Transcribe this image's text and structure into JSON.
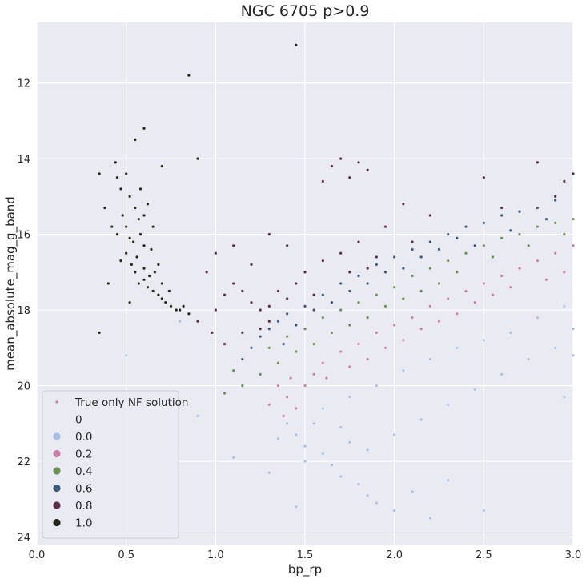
{
  "chart_data": {
    "type": "scatter",
    "title": "NGC 6705 p>0.9",
    "xlabel": "bp_rp",
    "ylabel": "mean_absolute_mag_g_band",
    "xlim": [
      0.0,
      3.0
    ],
    "ylim": [
      24.2,
      10.4
    ],
    "y_inverted": true,
    "x_ticks": [
      0.0,
      0.5,
      1.0,
      1.5,
      2.0,
      2.5,
      3.0
    ],
    "x_tick_labels": [
      "0.0",
      "0.5",
      "1.0",
      "1.5",
      "2.0",
      "2.5",
      "3.0"
    ],
    "y_ticks": [
      12,
      14,
      16,
      18,
      20,
      22,
      24
    ],
    "y_tick_labels": [
      "12",
      "14",
      "16",
      "18",
      "20",
      "22",
      "24"
    ],
    "grid": true,
    "background": "#eaeaf2",
    "hue_name": "0",
    "hue_colors": {
      "0.0": "#a7bfe4",
      "0.2": "#c981a8",
      "0.4": "#6a8f52",
      "0.6": "#38597a",
      "0.8": "#5c2d46",
      "1.0": "#262618"
    },
    "legend": {
      "placement": "lower-left",
      "entries": [
        {
          "label": "True only NF solution",
          "marker": "cross",
          "color": "#c981a8"
        },
        {
          "label": "0",
          "marker": "none",
          "color": ""
        },
        {
          "label": "0.0",
          "marker": "dot",
          "color": "#a7bfe4"
        },
        {
          "label": "0.2",
          "marker": "dot",
          "color": "#c981a8"
        },
        {
          "label": "0.4",
          "marker": "dot",
          "color": "#6a8f52"
        },
        {
          "label": "0.6",
          "marker": "dot",
          "color": "#38597a"
        },
        {
          "label": "0.8",
          "marker": "dot",
          "color": "#5c2d46"
        },
        {
          "label": "1.0",
          "marker": "dot",
          "color": "#262618"
        }
      ]
    },
    "series": [
      {
        "hue": "1.0",
        "points": [
          [
            0.45,
            14.5
          ],
          [
            0.47,
            14.8
          ],
          [
            0.5,
            14.4
          ],
          [
            0.52,
            15.0
          ],
          [
            0.55,
            15.3
          ],
          [
            0.57,
            15.6
          ],
          [
            0.58,
            16.0
          ],
          [
            0.6,
            16.3
          ],
          [
            0.5,
            16.5
          ],
          [
            0.53,
            16.8
          ],
          [
            0.55,
            17.0
          ],
          [
            0.6,
            17.2
          ],
          [
            0.62,
            17.4
          ],
          [
            0.65,
            17.5
          ],
          [
            0.68,
            17.6
          ],
          [
            0.7,
            17.7
          ],
          [
            0.72,
            17.8
          ],
          [
            0.75,
            17.9
          ],
          [
            0.78,
            18.0
          ],
          [
            0.8,
            18.0
          ],
          [
            0.48,
            15.5
          ],
          [
            0.5,
            15.8
          ],
          [
            0.52,
            16.1
          ],
          [
            0.56,
            16.6
          ],
          [
            0.6,
            16.9
          ],
          [
            0.63,
            17.1
          ],
          [
            0.58,
            14.8
          ],
          [
            0.62,
            15.2
          ],
          [
            0.65,
            15.8
          ],
          [
            0.57,
            17.3
          ],
          [
            0.54,
            16.2
          ],
          [
            0.66,
            17.0
          ],
          [
            0.7,
            17.3
          ],
          [
            0.74,
            17.5
          ],
          [
            0.82,
            17.9
          ],
          [
            0.85,
            18.1
          ],
          [
            0.45,
            16.0
          ],
          [
            0.47,
            16.7
          ],
          [
            0.42,
            15.8
          ],
          [
            0.6,
            15.5
          ],
          [
            0.64,
            16.4
          ],
          [
            0.68,
            16.8
          ],
          [
            0.35,
            14.4
          ],
          [
            0.38,
            15.3
          ],
          [
            0.44,
            14.1
          ],
          [
            0.55,
            13.5
          ],
          [
            0.6,
            13.2
          ],
          [
            0.35,
            18.6
          ],
          [
            0.85,
            11.8
          ],
          [
            1.45,
            11.0
          ],
          [
            0.4,
            17.3
          ],
          [
            0.52,
            17.8
          ],
          [
            0.7,
            14.2
          ],
          [
            0.9,
            14.0
          ]
        ]
      },
      {
        "hue": "0.8",
        "points": [
          [
            0.9,
            18.3
          ],
          [
            1.0,
            18.0
          ],
          [
            1.05,
            17.6
          ],
          [
            1.1,
            17.3
          ],
          [
            1.15,
            17.5
          ],
          [
            1.2,
            17.8
          ],
          [
            1.25,
            18.0
          ],
          [
            1.3,
            17.9
          ],
          [
            1.35,
            17.5
          ],
          [
            1.4,
            17.7
          ],
          [
            1.45,
            17.3
          ],
          [
            1.5,
            17.0
          ],
          [
            1.6,
            16.7
          ],
          [
            1.7,
            16.5
          ],
          [
            1.8,
            16.2
          ],
          [
            1.9,
            16.6
          ],
          [
            1.75,
            17.0
          ],
          [
            1.85,
            16.9
          ],
          [
            1.0,
            16.5
          ],
          [
            1.1,
            16.3
          ],
          [
            0.95,
            17.0
          ],
          [
            1.2,
            16.8
          ],
          [
            1.3,
            18.3
          ],
          [
            1.25,
            18.5
          ],
          [
            1.15,
            18.6
          ],
          [
            1.05,
            18.9
          ],
          [
            1.65,
            14.2
          ],
          [
            1.75,
            14.5
          ],
          [
            1.8,
            14.1
          ],
          [
            1.6,
            14.6
          ],
          [
            1.7,
            14.0
          ],
          [
            1.85,
            14.3
          ],
          [
            2.05,
            15.2
          ],
          [
            2.2,
            15.5
          ],
          [
            2.6,
            15.3
          ],
          [
            2.9,
            15.0
          ],
          [
            2.95,
            14.6
          ],
          [
            3.0,
            14.4
          ],
          [
            2.8,
            14.1
          ],
          [
            2.5,
            14.5
          ],
          [
            1.3,
            16.0
          ],
          [
            1.4,
            16.3
          ],
          [
            1.55,
            17.6
          ],
          [
            1.95,
            15.8
          ],
          [
            2.1,
            16.2
          ],
          [
            0.98,
            18.6
          ]
        ]
      },
      {
        "hue": "0.6",
        "points": [
          [
            1.25,
            18.7
          ],
          [
            1.3,
            18.5
          ],
          [
            1.35,
            18.3
          ],
          [
            1.4,
            18.1
          ],
          [
            1.5,
            17.9
          ],
          [
            1.6,
            17.6
          ],
          [
            1.7,
            17.3
          ],
          [
            1.8,
            17.1
          ],
          [
            1.9,
            16.8
          ],
          [
            2.0,
            16.6
          ],
          [
            2.1,
            16.4
          ],
          [
            2.2,
            16.2
          ],
          [
            2.3,
            16.0
          ],
          [
            2.4,
            15.8
          ],
          [
            2.5,
            15.7
          ],
          [
            2.6,
            15.5
          ],
          [
            2.7,
            15.4
          ],
          [
            2.8,
            15.3
          ],
          [
            2.9,
            15.1
          ],
          [
            1.45,
            18.4
          ],
          [
            1.55,
            18.0
          ],
          [
            1.65,
            17.8
          ],
          [
            1.75,
            17.5
          ],
          [
            1.85,
            17.3
          ],
          [
            1.95,
            17.0
          ],
          [
            2.05,
            16.9
          ],
          [
            2.15,
            16.6
          ],
          [
            2.25,
            16.4
          ],
          [
            2.35,
            16.1
          ],
          [
            1.2,
            19.0
          ],
          [
            1.15,
            19.3
          ],
          [
            1.38,
            18.9
          ],
          [
            2.45,
            16.3
          ],
          [
            2.65,
            15.9
          ],
          [
            2.85,
            15.6
          ]
        ]
      },
      {
        "hue": "0.4",
        "points": [
          [
            1.3,
            19.0
          ],
          [
            1.4,
            18.7
          ],
          [
            1.5,
            18.5
          ],
          [
            1.6,
            18.2
          ],
          [
            1.7,
            18.0
          ],
          [
            1.8,
            17.8
          ],
          [
            1.9,
            17.6
          ],
          [
            2.0,
            17.4
          ],
          [
            2.1,
            17.1
          ],
          [
            2.2,
            16.9
          ],
          [
            2.3,
            16.7
          ],
          [
            2.4,
            16.5
          ],
          [
            2.5,
            16.3
          ],
          [
            2.6,
            16.1
          ],
          [
            2.7,
            16.0
          ],
          [
            2.8,
            15.8
          ],
          [
            2.9,
            15.7
          ],
          [
            3.0,
            15.6
          ],
          [
            1.1,
            19.6
          ],
          [
            1.15,
            20.0
          ],
          [
            1.05,
            20.2
          ],
          [
            1.25,
            19.7
          ],
          [
            1.35,
            19.4
          ],
          [
            1.45,
            19.1
          ],
          [
            1.55,
            18.9
          ],
          [
            1.65,
            18.6
          ],
          [
            1.75,
            18.4
          ],
          [
            1.85,
            18.2
          ],
          [
            1.95,
            17.9
          ],
          [
            2.05,
            17.7
          ],
          [
            2.15,
            17.5
          ],
          [
            2.25,
            17.3
          ],
          [
            2.35,
            17.0
          ],
          [
            2.55,
            16.6
          ],
          [
            2.75,
            16.3
          ],
          [
            2.95,
            16.0
          ]
        ]
      },
      {
        "hue": "0.2",
        "points": [
          [
            1.35,
            20.0
          ],
          [
            1.4,
            20.3
          ],
          [
            1.45,
            20.6
          ],
          [
            1.5,
            20.0
          ],
          [
            1.55,
            19.7
          ],
          [
            1.6,
            19.4
          ],
          [
            1.7,
            19.1
          ],
          [
            1.8,
            18.9
          ],
          [
            1.9,
            18.6
          ],
          [
            2.0,
            18.4
          ],
          [
            2.1,
            18.2
          ],
          [
            2.2,
            17.9
          ],
          [
            2.3,
            17.7
          ],
          [
            2.4,
            17.5
          ],
          [
            2.5,
            17.3
          ],
          [
            2.6,
            17.1
          ],
          [
            2.7,
            16.9
          ],
          [
            2.8,
            16.7
          ],
          [
            2.9,
            16.5
          ],
          [
            3.0,
            16.3
          ],
          [
            1.3,
            20.5
          ],
          [
            1.38,
            20.8
          ],
          [
            1.42,
            19.8
          ],
          [
            1.62,
            19.8
          ],
          [
            1.75,
            19.5
          ],
          [
            1.85,
            19.3
          ],
          [
            1.95,
            19.0
          ],
          [
            2.05,
            18.8
          ],
          [
            2.15,
            18.5
          ],
          [
            2.25,
            18.3
          ],
          [
            2.35,
            18.1
          ],
          [
            2.45,
            17.8
          ],
          [
            2.55,
            17.6
          ],
          [
            2.65,
            17.4
          ],
          [
            2.85,
            17.2
          ],
          [
            2.95,
            17.0
          ]
        ]
      },
      {
        "hue": "0.0",
        "points": [
          [
            1.4,
            21.0
          ],
          [
            1.45,
            21.3
          ],
          [
            1.5,
            21.6
          ],
          [
            1.55,
            21.0
          ],
          [
            1.6,
            21.8
          ],
          [
            1.65,
            22.1
          ],
          [
            1.7,
            22.4
          ],
          [
            1.75,
            21.5
          ],
          [
            1.8,
            22.6
          ],
          [
            1.85,
            22.9
          ],
          [
            1.9,
            23.1
          ],
          [
            2.0,
            23.3
          ],
          [
            2.1,
            22.8
          ],
          [
            2.2,
            23.5
          ],
          [
            2.3,
            22.5
          ],
          [
            2.5,
            23.3
          ],
          [
            1.6,
            20.6
          ],
          [
            1.75,
            20.3
          ],
          [
            1.9,
            20.0
          ],
          [
            2.05,
            19.6
          ],
          [
            2.2,
            19.3
          ],
          [
            2.35,
            19.0
          ],
          [
            2.5,
            18.8
          ],
          [
            2.65,
            18.6
          ],
          [
            2.8,
            18.2
          ],
          [
            2.95,
            17.9
          ],
          [
            3.0,
            18.5
          ],
          [
            2.9,
            19.0
          ],
          [
            2.75,
            19.3
          ],
          [
            2.6,
            19.7
          ],
          [
            2.45,
            20.1
          ],
          [
            2.3,
            20.5
          ],
          [
            2.15,
            20.9
          ],
          [
            2.0,
            21.3
          ],
          [
            1.85,
            21.7
          ],
          [
            1.7,
            21.1
          ],
          [
            1.5,
            22.0
          ],
          [
            1.35,
            21.4
          ],
          [
            1.3,
            22.3
          ],
          [
            1.45,
            23.2
          ],
          [
            0.5,
            19.2
          ],
          [
            0.8,
            18.3
          ],
          [
            0.9,
            20.8
          ],
          [
            1.1,
            21.9
          ],
          [
            3.0,
            19.2
          ],
          [
            2.95,
            20.3
          ]
        ]
      }
    ]
  }
}
